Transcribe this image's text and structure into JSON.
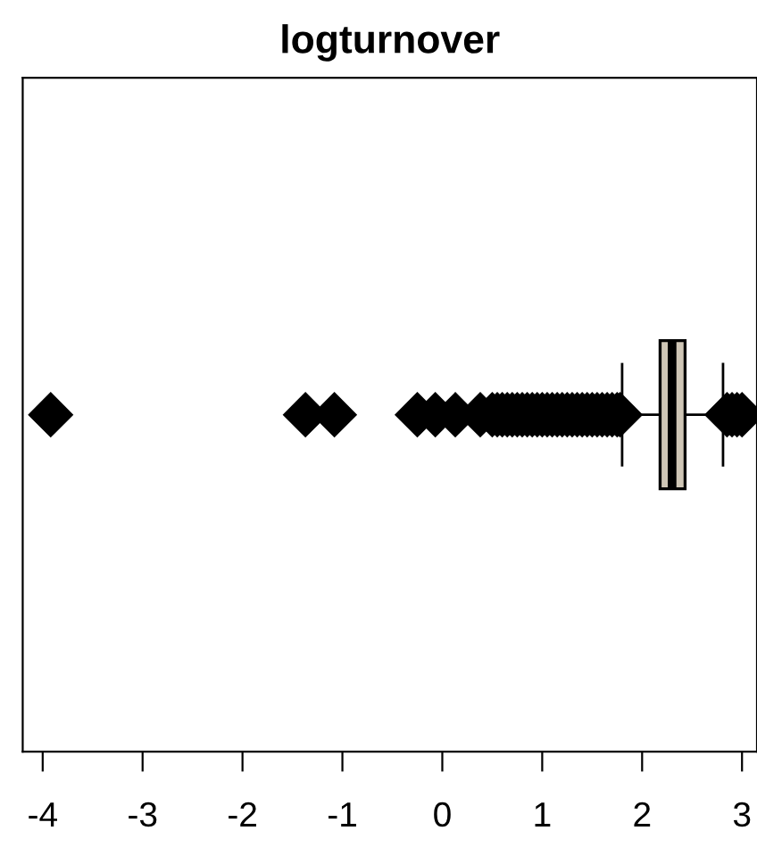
{
  "chart_data": {
    "type": "box",
    "title": "logturnover",
    "orientation": "horizontal",
    "categories": [
      null
    ],
    "color": "#cfc6b6",
    "marker": "diamond",
    "grid": false,
    "boxes": [
      {
        "low": 1.8,
        "q1": 2.18,
        "median": 2.3,
        "q3": 2.43,
        "high": 2.81,
        "outliers": [
          -3.92,
          -1.37,
          -1.08,
          -0.25,
          -0.07,
          0.13,
          0.38,
          0.5,
          0.55,
          0.6,
          0.65,
          0.7,
          0.75,
          0.8,
          0.85,
          0.9,
          0.95,
          1.0,
          1.05,
          1.1,
          1.15,
          1.2,
          1.25,
          1.3,
          1.35,
          1.4,
          1.45,
          1.5,
          1.55,
          1.6,
          1.65,
          1.7,
          1.75,
          1.78,
          2.85,
          2.9,
          2.95,
          3.0
        ]
      }
    ],
    "xlim": [
      -4.2,
      3.15
    ],
    "xticks": [
      -4,
      -3,
      -2,
      -1,
      0,
      1,
      2,
      3
    ]
  }
}
